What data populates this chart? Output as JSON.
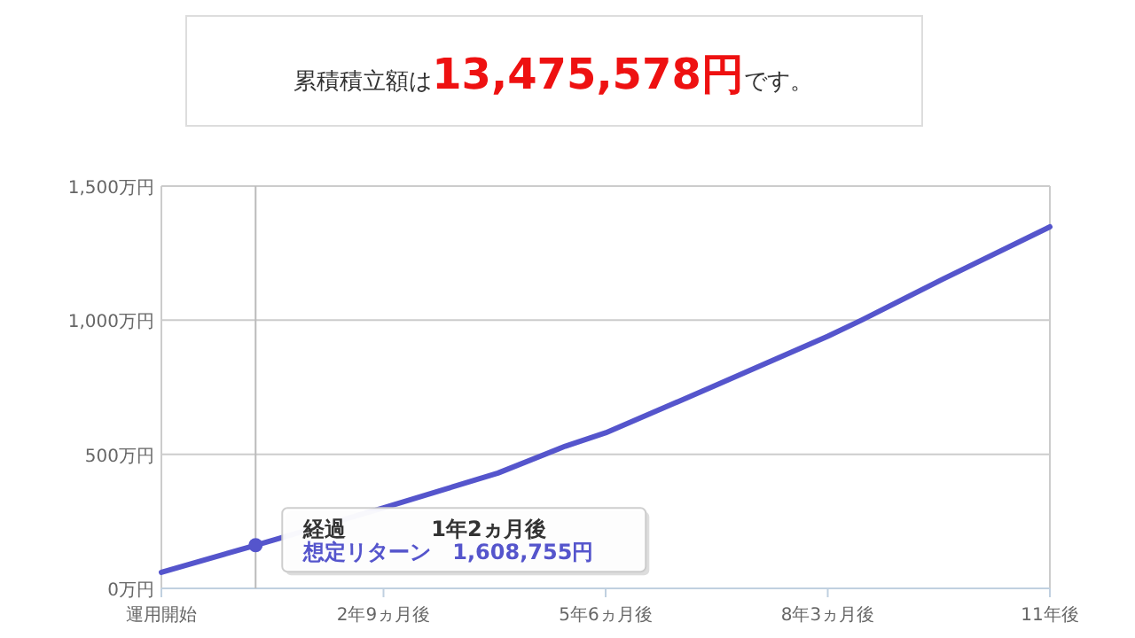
{
  "chart_data": {
    "type": "line",
    "title": "累積積立額は",
    "annotations": [
      "13,475,578円",
      "です。",
      "経過　　　　1年2ヵ月後",
      "想定リターン　1,608,755円"
    ],
    "categories": [
      "運用開始",
      null,
      null,
      null,
      null,
      null,
      null,
      null,
      null,
      null,
      null,
      null,
      null,
      null,
      null,
      null,
      null,
      null,
      null,
      null,
      null,
      null,
      null,
      null,
      null,
      null,
      null,
      null,
      null,
      null,
      null,
      null,
      null,
      "2年9ヵ月後",
      null,
      null,
      null,
      null,
      null,
      null,
      null,
      null,
      null,
      null,
      null,
      null,
      null,
      null,
      null,
      null,
      null,
      null,
      null,
      null,
      null,
      null,
      null,
      null,
      null,
      null,
      null,
      null,
      null,
      null,
      null,
      null,
      "5年6ヵ月後",
      null,
      null,
      null,
      null,
      null,
      null,
      null,
      null,
      null,
      null,
      null,
      null,
      null,
      null,
      null,
      null,
      null,
      null,
      null,
      null,
      null,
      null,
      null,
      null,
      null,
      null,
      null,
      null,
      null,
      null,
      null,
      null,
      "8年3ヵ月後",
      null,
      null,
      null,
      null,
      null,
      null,
      null,
      null,
      null,
      null,
      null,
      null,
      null,
      null,
      null,
      null,
      null,
      null,
      null,
      null,
      null,
      null,
      null,
      null,
      null,
      null,
      null,
      null,
      null,
      null,
      null,
      null,
      "11年後"
    ],
    "series": [
      {
        "color": "#5555cc",
        "values": [
          60,
          null,
          null,
          null,
          null,
          null,
          null,
          null,
          null,
          null,
          null,
          null,
          null,
          null,
          161,
          null,
          null,
          null,
          null,
          null,
          null,
          null,
          null,
          null,
          null,
          null,
          null,
          null,
          null,
          null,
          null,
          null,
          null,
          300,
          null,
          null,
          null,
          null,
          null,
          null,
          null,
          null,
          null,
          null,
          null,
          null,
          null,
          null,
          null,
          null,
          430,
          null,
          null,
          null,
          null,
          null,
          null,
          null,
          null,
          null,
          530,
          null,
          null,
          null,
          null,
          null,
          580,
          null,
          null,
          null,
          null,
          null,
          null,
          null,
          null,
          null,
          null,
          null,
          null,
          null,
          null,
          null,
          753,
          null,
          null,
          null,
          null,
          null,
          null,
          null,
          null,
          null,
          null,
          null,
          null,
          null,
          null,
          null,
          null,
          940,
          null,
          null,
          null,
          null,
          1000,
          null,
          null,
          null,
          null,
          null,
          null,
          null,
          null,
          null,
          null,
          null,
          1152,
          null,
          null,
          null,
          null,
          null,
          null,
          null,
          null,
          null,
          null,
          null,
          null,
          null,
          null,
          null,
          1348
        ]
      }
    ],
    "ylim": [
      0,
      1500
    ],
    "yticks": [
      {
        "value": 0,
        "label": "0万円"
      },
      {
        "value": 500,
        "label": "500万円"
      },
      {
        "value": 1000,
        "label": "1,000万円"
      },
      {
        "value": 1500,
        "label": "1,500万円"
      }
    ],
    "grid": "y"
  }
}
